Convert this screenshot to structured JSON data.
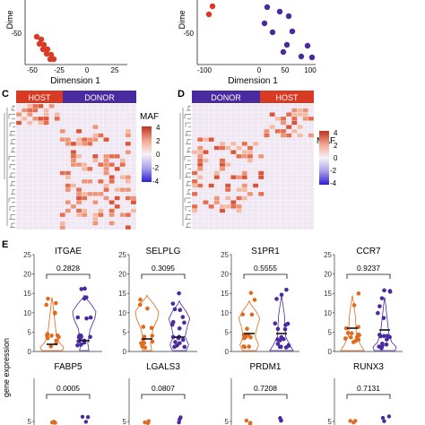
{
  "panel_a": {
    "y_label": "Dime",
    "x_label": "Dimension 1",
    "x_ticks": [
      "-50",
      "-25",
      "0",
      "25"
    ],
    "y_ticks": [
      "-50"
    ],
    "color": "#d93a24"
  },
  "panel_b": {
    "y_label": "Dime",
    "x_label": "Dimension 1",
    "x_ticks": [
      "-100",
      "0",
      "50",
      "100"
    ],
    "y_ticks": [
      "-50"
    ],
    "host_color": "#d93a24",
    "donor_color": "#4a2aa0"
  },
  "panel_c": {
    "letter": "C",
    "header_left": "HOST",
    "header_right": "DONOR"
  },
  "panel_d": {
    "letter": "D",
    "header_left": "DONOR",
    "header_right": "HOST"
  },
  "colorbar": {
    "title": "MAF",
    "ticks": [
      "4",
      "2",
      "0",
      "-2",
      "-4"
    ],
    "high_color": "#d93a24",
    "low_color": "#3b2bd6"
  },
  "panel_e": {
    "letter": "E",
    "y_label": "gene expression",
    "y_ticks": [
      "25",
      "20",
      "15",
      "10",
      "5",
      "0"
    ],
    "host_color": "#e06a1e",
    "donor_color": "#4a2aa0",
    "genes_row1": [
      {
        "name": "ITGAE",
        "pvalue": "0.2828"
      },
      {
        "name": "SELPLG",
        "pvalue": "0.3095"
      },
      {
        "name": "S1PR1",
        "pvalue": "0.5555"
      },
      {
        "name": "CCR7",
        "pvalue": "0.9237"
      }
    ],
    "genes_row2": [
      {
        "name": "FABP5",
        "pvalue": "0.0005"
      },
      {
        "name": "LGALS3",
        "pvalue": "0.0807"
      },
      {
        "name": "PRDM1",
        "pvalue": "0.7208"
      },
      {
        "name": "RUNX3",
        "pvalue": "0.7131"
      }
    ],
    "row2_tick": "5"
  }
}
